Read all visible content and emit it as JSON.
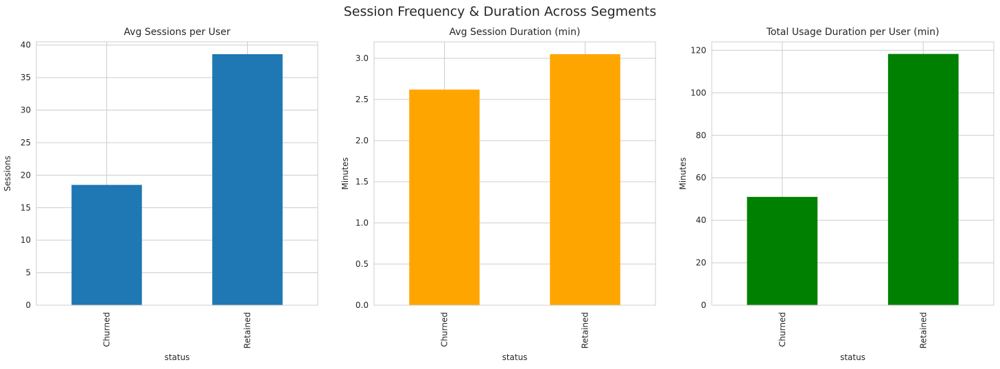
{
  "figure": {
    "suptitle": "Session Frequency & Duration Across Segments"
  },
  "chart_data": [
    {
      "type": "bar",
      "title": "Avg Sessions per User",
      "xlabel": "status",
      "ylabel": "Sessions",
      "categories": [
        "Churned",
        "Retained"
      ],
      "values": [
        18.5,
        38.6
      ],
      "ylim": [
        0,
        40.5
      ],
      "yticks": [
        0,
        5,
        10,
        15,
        20,
        25,
        30,
        35,
        40
      ],
      "yticklabels": [
        "0",
        "5",
        "10",
        "15",
        "20",
        "25",
        "30",
        "35",
        "40"
      ],
      "color": "#1f77b4",
      "grid": true
    },
    {
      "type": "bar",
      "title": "Avg Session Duration (min)",
      "xlabel": "status",
      "ylabel": "Minutes",
      "categories": [
        "Churned",
        "Retained"
      ],
      "values": [
        2.62,
        3.05
      ],
      "ylim": [
        0,
        3.2
      ],
      "yticks": [
        0,
        0.5,
        1.0,
        1.5,
        2.0,
        2.5,
        3.0
      ],
      "yticklabels": [
        "0.0",
        "0.5",
        "1.0",
        "1.5",
        "2.0",
        "2.5",
        "3.0"
      ],
      "color": "#ffa500",
      "grid": true
    },
    {
      "type": "bar",
      "title": "Total Usage Duration per User (min)",
      "xlabel": "status",
      "ylabel": "Minutes",
      "categories": [
        "Churned",
        "Retained"
      ],
      "values": [
        51,
        118.3
      ],
      "ylim": [
        0,
        124
      ],
      "yticks": [
        0,
        20,
        40,
        60,
        80,
        100,
        120
      ],
      "yticklabels": [
        "0",
        "20",
        "40",
        "60",
        "80",
        "100",
        "120"
      ],
      "color": "#008000",
      "grid": true
    }
  ]
}
